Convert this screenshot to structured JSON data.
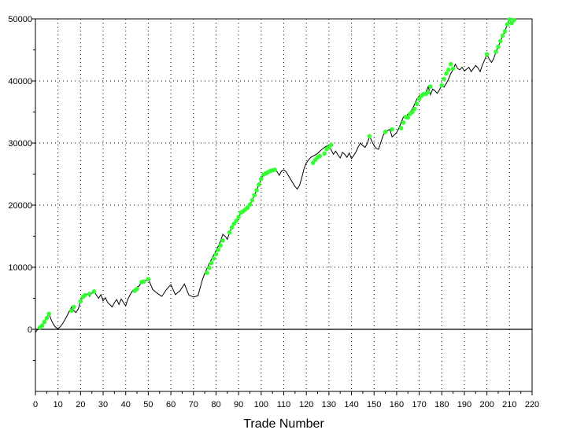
{
  "chart_data": {
    "type": "line",
    "title": "",
    "xlabel": "Trade Number",
    "ylabel": "",
    "xlim": [
      0,
      220
    ],
    "ylim": [
      -10000,
      50000
    ],
    "x_ticks": [
      0,
      10,
      20,
      30,
      40,
      50,
      60,
      70,
      80,
      90,
      100,
      110,
      120,
      130,
      140,
      150,
      160,
      170,
      180,
      190,
      200,
      210,
      220
    ],
    "y_ticks": [
      0,
      10000,
      20000,
      30000,
      40000,
      50000
    ],
    "grid": true,
    "series": [
      {
        "style": "line",
        "color": "#000000",
        "x": [
          0,
          1,
          2,
          3,
          4,
          5,
          6,
          7,
          8,
          9,
          10,
          11,
          12,
          13,
          14,
          15,
          16,
          17,
          18,
          19,
          20,
          21,
          22,
          23,
          24,
          25,
          26,
          27,
          28,
          29,
          30,
          31,
          32,
          33,
          34,
          35,
          36,
          37,
          38,
          39,
          40,
          41,
          42,
          43,
          44,
          45,
          46,
          47,
          48,
          49,
          50,
          52,
          54,
          56,
          58,
          60,
          62,
          64,
          66,
          68,
          70,
          72,
          74,
          75,
          76,
          77,
          78,
          79,
          80,
          81,
          82,
          83,
          84,
          85,
          86,
          87,
          88,
          89,
          90,
          91,
          92,
          93,
          94,
          95,
          96,
          97,
          98,
          99,
          100,
          101,
          102,
          103,
          104,
          105,
          106,
          107,
          108,
          109,
          110,
          111,
          112,
          113,
          114,
          115,
          116,
          117,
          118,
          119,
          120,
          121,
          122,
          123,
          124,
          125,
          126,
          127,
          128,
          129,
          130,
          131,
          132,
          133,
          134,
          135,
          136,
          137,
          138,
          139,
          140,
          141,
          142,
          143,
          144,
          145,
          146,
          147,
          148,
          149,
          150,
          151,
          152,
          153,
          154,
          155,
          156,
          157,
          158,
          159,
          160,
          161,
          162,
          163,
          164,
          165,
          166,
          167,
          168,
          169,
          170,
          171,
          172,
          173,
          174,
          175,
          176,
          177,
          178,
          179,
          180,
          181,
          182,
          183,
          184,
          185,
          186,
          187,
          188,
          189,
          190,
          191,
          192,
          193,
          194,
          195,
          196,
          197,
          198,
          199,
          200,
          201,
          202,
          203,
          204,
          205,
          206,
          207,
          208,
          209,
          210,
          211,
          212
        ],
        "y": [
          -500,
          0,
          300,
          600,
          1200,
          1800,
          2500,
          1500,
          800,
          300,
          100,
          400,
          900,
          1500,
          2200,
          2900,
          3600,
          3000,
          2700,
          3300,
          4500,
          5200,
          5500,
          5700,
          5300,
          5800,
          6100,
          5500,
          5000,
          5600,
          4600,
          5100,
          4300,
          4000,
          3600,
          4300,
          4800,
          4000,
          4900,
          4300,
          3800,
          4900,
          5600,
          6200,
          6500,
          6800,
          7000,
          7600,
          7700,
          7900,
          8100,
          6400,
          5800,
          5300,
          6400,
          7200,
          5600,
          6200,
          7300,
          5500,
          5200,
          5400,
          8000,
          9000,
          9800,
          10600,
          11300,
          12000,
          12700,
          13400,
          14200,
          15300,
          15000,
          14500,
          15600,
          16400,
          17000,
          17500,
          18100,
          18800,
          19000,
          19300,
          19600,
          20100,
          20800,
          21600,
          22400,
          23300,
          24200,
          24900,
          25100,
          25300,
          25500,
          25600,
          25700,
          25400,
          24800,
          25500,
          25700,
          25400,
          24800,
          24200,
          23600,
          23000,
          22600,
          23200,
          24400,
          25900,
          26800,
          27300,
          27700,
          27900,
          28100,
          28300,
          28700,
          29000,
          29300,
          29500,
          29700,
          28900,
          28200,
          28700,
          28100,
          27600,
          28500,
          28200,
          27700,
          28400,
          27500,
          28000,
          28600,
          29400,
          30000,
          29600,
          29300,
          29900,
          31100,
          30300,
          29600,
          29100,
          29000,
          30100,
          31200,
          31800,
          32000,
          32200,
          31000,
          31300,
          31700,
          32400,
          33300,
          34200,
          34100,
          34700,
          35000,
          35500,
          36300,
          37100,
          37600,
          37900,
          37900,
          38200,
          39100,
          37800,
          38700,
          38400,
          38000,
          38600,
          39300,
          39000,
          39600,
          40300,
          41200,
          41800,
          42700,
          42000,
          41800,
          42200,
          41600,
          41900,
          42200,
          41500,
          42000,
          42500,
          42100,
          41500,
          42600,
          43400,
          44300,
          43500,
          43000,
          43600,
          44700,
          45500,
          46400,
          47300,
          48000,
          49100,
          49900,
          49300,
          49800
        ]
      },
      {
        "style": "markers",
        "color": "#33ff33",
        "x": [
          2,
          3,
          4,
          5,
          6,
          16,
          17,
          20,
          21,
          22,
          24,
          26,
          44,
          45,
          47,
          48,
          50,
          76,
          77,
          78,
          79,
          80,
          81,
          82,
          83,
          86,
          87,
          88,
          89,
          90,
          91,
          92,
          93,
          94,
          95,
          96,
          97,
          98,
          99,
          100,
          101,
          102,
          103,
          104,
          105,
          106,
          123,
          124,
          125,
          126,
          128,
          129,
          130,
          131,
          148,
          155,
          158,
          162,
          163,
          164,
          165,
          166,
          167,
          168,
          169,
          170,
          171,
          172,
          173,
          174,
          175,
          180,
          181,
          182,
          183,
          184,
          185,
          200,
          204,
          205,
          206,
          207,
          208,
          209,
          210,
          211,
          212
        ],
        "y": [
          300,
          600,
          1200,
          1800,
          2500,
          3000,
          3600,
          4500,
          5200,
          5500,
          5700,
          6100,
          6200,
          6500,
          7600,
          7700,
          8100,
          9100,
          9900,
          10700,
          11400,
          12100,
          12800,
          13500,
          14300,
          15600,
          16400,
          17000,
          17500,
          18100,
          18800,
          19000,
          19300,
          19600,
          20100,
          20800,
          21600,
          22400,
          23300,
          24200,
          24900,
          25100,
          25300,
          25500,
          25600,
          25700,
          26800,
          27300,
          27700,
          27900,
          28300,
          29000,
          29300,
          29700,
          31100,
          31800,
          32200,
          32400,
          33300,
          34200,
          34100,
          34700,
          35000,
          35500,
          36300,
          37100,
          37600,
          37900,
          37900,
          38200,
          39100,
          39300,
          40300,
          41200,
          41800,
          42700,
          42000,
          44300,
          44700,
          45500,
          46400,
          47300,
          48000,
          49100,
          49900,
          49300,
          49800
        ]
      }
    ]
  }
}
